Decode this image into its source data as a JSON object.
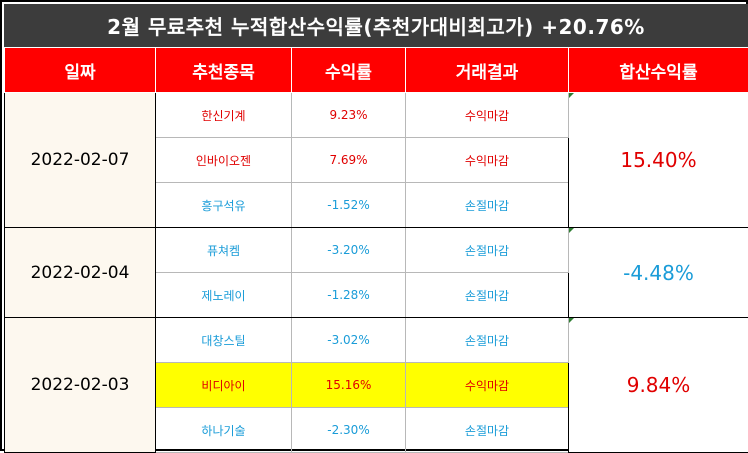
{
  "title": "2월 무료추천 누적합산수익률(추천가대비최고가) +20.76%",
  "headers": {
    "date": "일짜",
    "stock": "추천종목",
    "return": "수익률",
    "result": "거래결과",
    "total": "합산수익률"
  },
  "groups": [
    {
      "date": "2022-02-07",
      "total": "15.40%",
      "rows": [
        {
          "stock": "한신기계",
          "return": "9.23%",
          "result": "수익마감"
        },
        {
          "stock": "인바이오젠",
          "return": "7.69%",
          "result": "수익마감"
        },
        {
          "stock": "흥구석유",
          "return": "-1.52%",
          "result": "손절마감"
        }
      ]
    },
    {
      "date": "2022-02-04",
      "total": "-4.48%",
      "rows": [
        {
          "stock": "퓨쳐켐",
          "return": "-3.20%",
          "result": "손절마감"
        },
        {
          "stock": "제노레이",
          "return": "-1.28%",
          "result": "손절마감"
        }
      ]
    },
    {
      "date": "2022-02-03",
      "total": "9.84%",
      "rows": [
        {
          "stock": "대창스틸",
          "return": "-3.02%",
          "result": "손절마감"
        },
        {
          "stock": "비디아이",
          "return": "15.16%",
          "result": "수익마감"
        },
        {
          "stock": "하나기술",
          "return": "-2.30%",
          "result": "손절마감"
        }
      ]
    }
  ],
  "colors": {
    "title_bg": "#3c3c3c",
    "header_bg": "#ff0000",
    "profit": "#e00000",
    "loss": "#1a9cd8",
    "highlight": "#ffff00",
    "date_bg": "#fdf8ef"
  }
}
